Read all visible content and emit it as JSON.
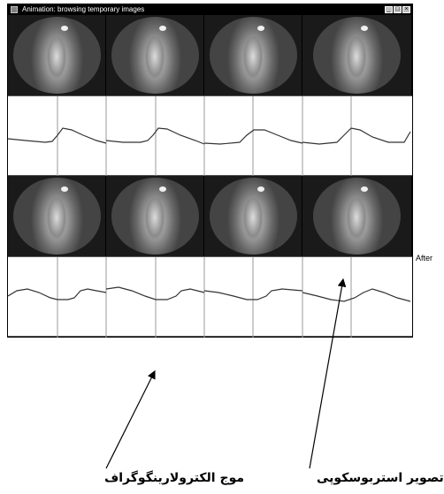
{
  "window": {
    "title": "Animation: browsing temporary images",
    "controls": [
      "_",
      "□",
      "×"
    ]
  },
  "grid": {
    "photo_rows": 2,
    "wave_rows": 2,
    "columns": 4
  },
  "side_label": "After",
  "captions": {
    "egg_wave": "موج الکترولارینگوگراف",
    "stroboscopy_image": "تصویر استربوسکوپی"
  },
  "colors": {
    "titlebar": "#000000",
    "photo_background": "#1a1a1a",
    "waveform": "#333333",
    "divider": "#999999"
  }
}
